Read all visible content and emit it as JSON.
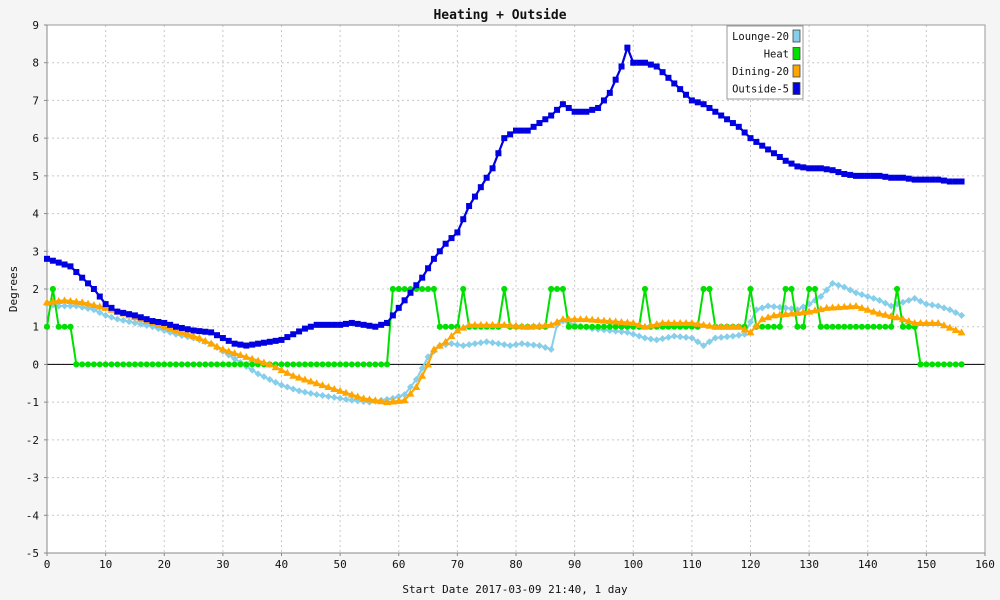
{
  "chart_data": {
    "type": "line",
    "title": "Heating + Outside",
    "xlabel": "Start Date 2017-03-09 21:40, 1 day",
    "ylabel": "Degrees",
    "xlim": [
      0,
      160
    ],
    "ylim": [
      -5,
      9
    ],
    "x_ticks": [
      0,
      10,
      20,
      30,
      40,
      50,
      60,
      70,
      80,
      90,
      100,
      110,
      120,
      130,
      140,
      150,
      160
    ],
    "y_ticks": [
      -5,
      -4,
      -3,
      -2,
      -1,
      0,
      1,
      2,
      3,
      4,
      5,
      6,
      7,
      8,
      9
    ],
    "grid": true,
    "legend_position": "top-right",
    "series": [
      {
        "name": "Lounge-20",
        "color": "#87ceeb",
        "marker": "diamond",
        "values": [
          [
            0,
            1.6
          ],
          [
            2,
            1.55
          ],
          [
            5,
            1.55
          ],
          [
            8,
            1.45
          ],
          [
            10,
            1.3
          ],
          [
            12,
            1.2
          ],
          [
            15,
            1.1
          ],
          [
            18,
            1.0
          ],
          [
            20,
            0.9
          ],
          [
            22,
            0.8
          ],
          [
            25,
            0.7
          ],
          [
            28,
            0.55
          ],
          [
            30,
            0.35
          ],
          [
            32,
            0.15
          ],
          [
            34,
            -0.05
          ],
          [
            36,
            -0.25
          ],
          [
            38,
            -0.4
          ],
          [
            40,
            -0.55
          ],
          [
            43,
            -0.7
          ],
          [
            46,
            -0.8
          ],
          [
            48,
            -0.85
          ],
          [
            50,
            -0.9
          ],
          [
            52,
            -0.95
          ],
          [
            55,
            -1.0
          ],
          [
            57,
            -0.95
          ],
          [
            59,
            -0.9
          ],
          [
            61,
            -0.8
          ],
          [
            63,
            -0.4
          ],
          [
            65,
            0.2
          ],
          [
            67,
            0.5
          ],
          [
            69,
            0.55
          ],
          [
            71,
            0.5
          ],
          [
            73,
            0.55
          ],
          [
            75,
            0.6
          ],
          [
            77,
            0.55
          ],
          [
            79,
            0.5
          ],
          [
            81,
            0.55
          ],
          [
            84,
            0.5
          ],
          [
            86,
            0.4
          ],
          [
            87,
            1.05
          ],
          [
            88,
            1.15
          ],
          [
            90,
            1.05
          ],
          [
            93,
            0.95
          ],
          [
            96,
            0.9
          ],
          [
            99,
            0.85
          ],
          [
            102,
            0.7
          ],
          [
            104,
            0.65
          ],
          [
            107,
            0.75
          ],
          [
            110,
            0.7
          ],
          [
            112,
            0.5
          ],
          [
            114,
            0.7
          ],
          [
            117,
            0.75
          ],
          [
            119,
            0.8
          ],
          [
            121,
            1.45
          ],
          [
            123,
            1.55
          ],
          [
            126,
            1.5
          ],
          [
            128,
            1.45
          ],
          [
            130,
            1.6
          ],
          [
            132,
            1.8
          ],
          [
            134,
            2.15
          ],
          [
            136,
            2.05
          ],
          [
            138,
            1.9
          ],
          [
            140,
            1.8
          ],
          [
            142,
            1.7
          ],
          [
            144,
            1.55
          ],
          [
            146,
            1.65
          ],
          [
            148,
            1.75
          ],
          [
            150,
            1.6
          ],
          [
            152,
            1.55
          ],
          [
            154,
            1.45
          ],
          [
            156,
            1.3
          ]
        ]
      },
      {
        "name": "Heat",
        "color": "#00e000",
        "marker": "circle",
        "values": [
          [
            0,
            1
          ],
          [
            1,
            2
          ],
          [
            2,
            1
          ],
          [
            4,
            1
          ],
          [
            5,
            0
          ],
          [
            58,
            0
          ],
          [
            59,
            2
          ],
          [
            60,
            2
          ],
          [
            66,
            2
          ],
          [
            67,
            1
          ],
          [
            70,
            1
          ],
          [
            71,
            2
          ],
          [
            72,
            1
          ],
          [
            77,
            1
          ],
          [
            78,
            2
          ],
          [
            79,
            1
          ],
          [
            85,
            1
          ],
          [
            86,
            2
          ],
          [
            88,
            2
          ],
          [
            89,
            1
          ],
          [
            101,
            1
          ],
          [
            102,
            2
          ],
          [
            103,
            1
          ],
          [
            111,
            1
          ],
          [
            112,
            2
          ],
          [
            113,
            2
          ],
          [
            114,
            1
          ],
          [
            119,
            1
          ],
          [
            120,
            2
          ],
          [
            121,
            1
          ],
          [
            125,
            1
          ],
          [
            126,
            2
          ],
          [
            127,
            2
          ],
          [
            128,
            1
          ],
          [
            129,
            1
          ],
          [
            130,
            2
          ],
          [
            131,
            2
          ],
          [
            132,
            1
          ],
          [
            144,
            1
          ],
          [
            145,
            2
          ],
          [
            146,
            1
          ],
          [
            148,
            1
          ],
          [
            149,
            0
          ],
          [
            156,
            0
          ]
        ]
      },
      {
        "name": "Dining-20",
        "color": "#ffa500",
        "marker": "triangle",
        "values": [
          [
            0,
            1.65
          ],
          [
            3,
            1.7
          ],
          [
            6,
            1.65
          ],
          [
            10,
            1.5
          ],
          [
            14,
            1.3
          ],
          [
            18,
            1.1
          ],
          [
            22,
            0.9
          ],
          [
            26,
            0.7
          ],
          [
            30,
            0.4
          ],
          [
            34,
            0.2
          ],
          [
            38,
            0.0
          ],
          [
            42,
            -0.3
          ],
          [
            46,
            -0.5
          ],
          [
            50,
            -0.7
          ],
          [
            54,
            -0.9
          ],
          [
            58,
            -1.0
          ],
          [
            61,
            -0.95
          ],
          [
            63,
            -0.6
          ],
          [
            65,
            0.0
          ],
          [
            66,
            0.4
          ],
          [
            68,
            0.6
          ],
          [
            70,
            0.9
          ],
          [
            72,
            1.05
          ],
          [
            75,
            1.05
          ],
          [
            78,
            1.05
          ],
          [
            82,
            1.0
          ],
          [
            86,
            1.05
          ],
          [
            88,
            1.2
          ],
          [
            92,
            1.2
          ],
          [
            96,
            1.15
          ],
          [
            100,
            1.1
          ],
          [
            102,
            1.0
          ],
          [
            105,
            1.1
          ],
          [
            110,
            1.1
          ],
          [
            114,
            1.0
          ],
          [
            118,
            1.0
          ],
          [
            120,
            0.85
          ],
          [
            122,
            1.2
          ],
          [
            124,
            1.3
          ],
          [
            127,
            1.35
          ],
          [
            130,
            1.4
          ],
          [
            133,
            1.5
          ],
          [
            138,
            1.55
          ],
          [
            142,
            1.35
          ],
          [
            145,
            1.25
          ],
          [
            148,
            1.1
          ],
          [
            152,
            1.1
          ],
          [
            156,
            0.85
          ]
        ]
      },
      {
        "name": "Outside-5",
        "color": "#0000e0",
        "marker": "square",
        "values": [
          [
            0,
            2.8
          ],
          [
            2,
            2.7
          ],
          [
            4,
            2.6
          ],
          [
            6,
            2.3
          ],
          [
            8,
            2.0
          ],
          [
            10,
            1.6
          ],
          [
            12,
            1.4
          ],
          [
            15,
            1.3
          ],
          [
            18,
            1.15
          ],
          [
            20,
            1.1
          ],
          [
            22,
            1.0
          ],
          [
            25,
            0.9
          ],
          [
            28,
            0.85
          ],
          [
            30,
            0.7
          ],
          [
            32,
            0.55
          ],
          [
            34,
            0.5
          ],
          [
            36,
            0.55
          ],
          [
            38,
            0.6
          ],
          [
            40,
            0.65
          ],
          [
            42,
            0.8
          ],
          [
            44,
            0.95
          ],
          [
            46,
            1.05
          ],
          [
            48,
            1.05
          ],
          [
            50,
            1.05
          ],
          [
            52,
            1.1
          ],
          [
            54,
            1.05
          ],
          [
            56,
            1.0
          ],
          [
            58,
            1.1
          ],
          [
            60,
            1.5
          ],
          [
            62,
            1.9
          ],
          [
            64,
            2.3
          ],
          [
            66,
            2.8
          ],
          [
            68,
            3.2
          ],
          [
            70,
            3.5
          ],
          [
            72,
            4.2
          ],
          [
            74,
            4.7
          ],
          [
            76,
            5.2
          ],
          [
            78,
            6.0
          ],
          [
            80,
            6.2
          ],
          [
            82,
            6.2
          ],
          [
            84,
            6.4
          ],
          [
            86,
            6.6
          ],
          [
            88,
            6.9
          ],
          [
            90,
            6.7
          ],
          [
            92,
            6.7
          ],
          [
            94,
            6.8
          ],
          [
            96,
            7.2
          ],
          [
            98,
            7.9
          ],
          [
            99,
            8.4
          ],
          [
            100,
            8.0
          ],
          [
            102,
            8.0
          ],
          [
            104,
            7.9
          ],
          [
            106,
            7.6
          ],
          [
            108,
            7.3
          ],
          [
            110,
            7.0
          ],
          [
            112,
            6.9
          ],
          [
            114,
            6.7
          ],
          [
            116,
            6.5
          ],
          [
            118,
            6.3
          ],
          [
            120,
            6.0
          ],
          [
            122,
            5.8
          ],
          [
            124,
            5.6
          ],
          [
            126,
            5.4
          ],
          [
            128,
            5.25
          ],
          [
            130,
            5.2
          ],
          [
            132,
            5.2
          ],
          [
            134,
            5.15
          ],
          [
            136,
            5.05
          ],
          [
            138,
            5.0
          ],
          [
            140,
            5.0
          ],
          [
            142,
            5.0
          ],
          [
            144,
            4.95
          ],
          [
            146,
            4.95
          ],
          [
            148,
            4.9
          ],
          [
            150,
            4.9
          ],
          [
            152,
            4.9
          ],
          [
            154,
            4.85
          ],
          [
            156,
            4.85
          ]
        ]
      }
    ]
  }
}
